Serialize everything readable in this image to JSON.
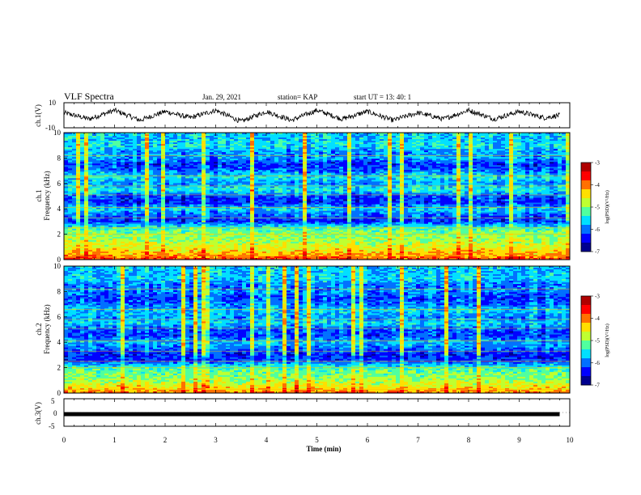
{
  "header": {
    "title": "VLF Spectra",
    "date": "Jan. 29, 2021",
    "station": "station= KAP",
    "start": "start UT =  13: 40: 1"
  },
  "chart_data": [
    {
      "type": "line",
      "panel": "ch1-waveform",
      "ylabel": "ch.1(V)",
      "ylim": [
        -10,
        10
      ],
      "yticks": [
        "10",
        "-10"
      ],
      "x_range": [
        0,
        10
      ],
      "x": [
        0,
        0.5,
        1.0,
        1.5,
        2.0,
        2.5,
        3.0,
        3.5,
        4.0,
        4.5,
        5.0,
        5.5,
        6.0,
        6.5,
        7.0,
        7.5,
        8.0,
        8.5,
        9.0,
        9.5,
        9.8
      ],
      "y": [
        2,
        -3,
        4,
        -4,
        3,
        -2,
        4,
        -5,
        3,
        -4,
        4,
        -3,
        3,
        -4,
        2,
        -3,
        4,
        -3,
        3,
        -2,
        0
      ]
    },
    {
      "type": "heatmap",
      "panel": "ch1-spectrogram",
      "ylabel": "Frequency (kHz)",
      "channel_label": "ch.1",
      "ylim": [
        0,
        10
      ],
      "yticks": [
        "0",
        "2",
        "4",
        "6",
        "8",
        "10"
      ],
      "colorbar": {
        "label": "log(PSD)(V²/Hz)",
        "range": [
          -7,
          -3
        ],
        "ticks": [
          "-3",
          "-4",
          "-5",
          "-6",
          "-7"
        ]
      },
      "freq_profile_kHz": [
        0,
        0.5,
        1,
        1.5,
        2,
        2.5,
        3,
        3.5,
        4,
        4.5,
        5,
        5.5,
        6,
        6.5,
        7,
        7.5,
        8,
        8.5,
        9,
        9.5,
        10
      ],
      "log_psd_profile": [
        -3.8,
        -4.3,
        -4.6,
        -4.9,
        -5.0,
        -5.3,
        -6.3,
        -6.1,
        -5.6,
        -6.3,
        -6.2,
        -5.4,
        -5.9,
        -5.5,
        -6.0,
        -6.3,
        -5.8,
        -5.9,
        -5.5,
        -5.7,
        -5.6
      ]
    },
    {
      "type": "heatmap",
      "panel": "ch2-spectrogram",
      "ylabel": "Frequency (kHz)",
      "channel_label": "ch.2",
      "ylim": [
        0,
        10
      ],
      "yticks": [
        "0",
        "2",
        "4",
        "6",
        "8",
        "10"
      ],
      "colorbar": {
        "label": "log(PSD)(V²/Hz)",
        "range": [
          -7,
          -3
        ],
        "ticks": [
          "-3",
          "-4",
          "-5",
          "-6",
          "-7"
        ]
      },
      "freq_profile_kHz": [
        0,
        0.5,
        1,
        1.5,
        2,
        2.5,
        3,
        3.5,
        4,
        4.5,
        5,
        5.5,
        6,
        6.5,
        7,
        7.5,
        8,
        8.5,
        9,
        9.5,
        10
      ],
      "log_psd_profile": [
        -4.0,
        -4.5,
        -4.9,
        -5.1,
        -5.3,
        -6.2,
        -6.4,
        -6.0,
        -5.7,
        -6.2,
        -6.1,
        -5.6,
        -5.9,
        -5.6,
        -6.0,
        -6.2,
        -5.9,
        -6.0,
        -5.6,
        -5.7,
        -5.6
      ]
    },
    {
      "type": "line",
      "panel": "ch3-waveform",
      "ylabel": "ch.3(V)",
      "ylim": [
        -5,
        5
      ],
      "yticks": [
        "5",
        "0",
        "-5"
      ],
      "x_range": [
        0,
        10
      ],
      "level_V": -0.6
    }
  ],
  "xaxis": {
    "label": "Time (min)",
    "ticks": [
      "0",
      "1",
      "2",
      "3",
      "4",
      "5",
      "6",
      "7",
      "8",
      "9",
      "10"
    ]
  },
  "colors": {
    "colormap": [
      "#00008f",
      "#0000ff",
      "#0070ff",
      "#00dfff",
      "#50ff9f",
      "#bfff30",
      "#ffdf00",
      "#ff7000",
      "#ff0000",
      "#af0000"
    ]
  }
}
